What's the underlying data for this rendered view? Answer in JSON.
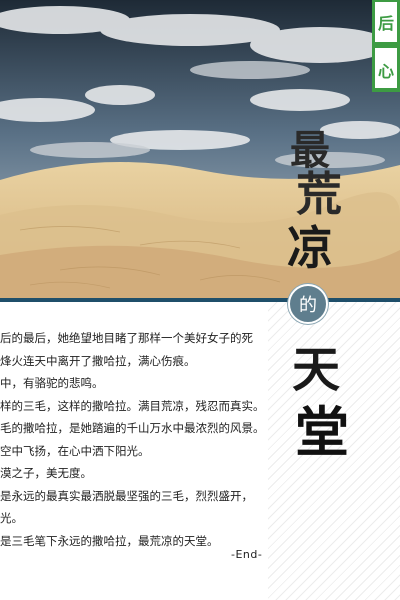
{
  "title": {
    "line1": "最",
    "line2": "荒",
    "line3": "凉",
    "badge": "的",
    "line4": "天",
    "line5": "堂"
  },
  "tab": {
    "char1": "后",
    "char2": "心"
  },
  "body": {
    "lines": [
      "后的最后，她绝望地目睹了那样一个美好女子的死",
      "烽火连天中离开了撒哈拉，满心伤痕。",
      "中，有骆驼的悲鸣。",
      "样的三毛，这样的撒哈拉。满目荒凉，残忍而真实。",
      "毛的撒哈拉，是她踏遍的千山万水中最浓烈的风景。",
      "空中飞扬，在心中洒下阳光。",
      "漠之子，美无度。",
      "是永远的最真实最洒脱最坚强的三毛，烈烈盛开，",
      "光。",
      "是三毛笔下永远的撒哈拉，最荒凉的天堂。"
    ],
    "end": "-End-"
  },
  "colors": {
    "divider": "#1f4f6a",
    "badge": "#5f7e8e",
    "tab": "#3d9b43"
  }
}
